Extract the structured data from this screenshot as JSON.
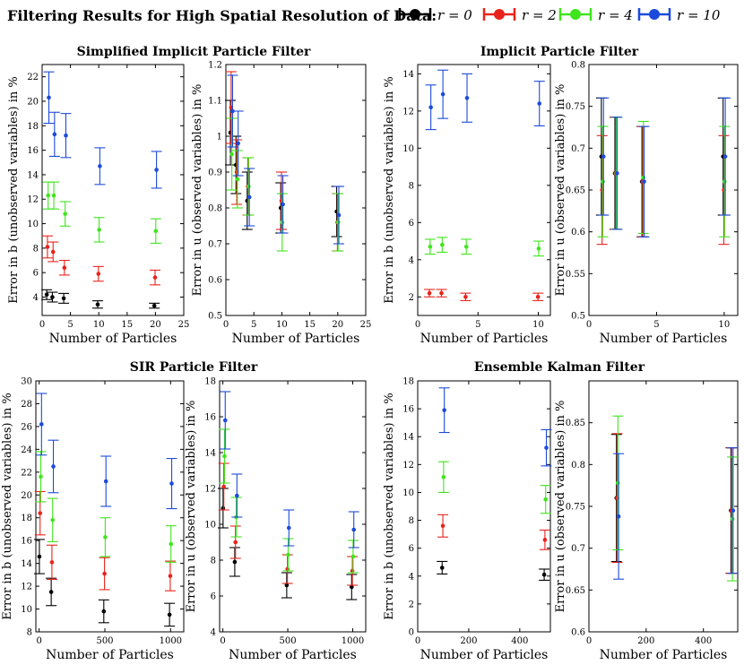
{
  "figure": {
    "main_title": "Filtering Results for High Spatial Resolution of Data:",
    "legend": [
      {
        "label": "r = 0",
        "color": "#000000"
      },
      {
        "label": "r = 2",
        "color": "#e8231b"
      },
      {
        "label": "r = 4",
        "color": "#3fe51c"
      },
      {
        "label": "r = 10",
        "color": "#1c4bdc"
      }
    ],
    "panel_titles": [
      "Simplified Implicit Particle Filter",
      "Implicit Particle Filter",
      "SIR Particle Filter",
      "Ensemble Kalman Filter"
    ]
  },
  "chart_data": [
    {
      "type": "scatter",
      "title": "Simplified Implicit Particle Filter",
      "xlabel": "Number of Particles",
      "ylabel": "Error in b (unobserved variables) in %",
      "xlim": [
        0,
        25
      ],
      "ylim": [
        2.5,
        23
      ],
      "xticks": [
        0,
        5,
        10,
        15,
        20,
        25
      ],
      "yticks": [
        4,
        6,
        8,
        10,
        12,
        14,
        16,
        18,
        20,
        22
      ],
      "series": [
        {
          "name": "r = 0",
          "color": "#000000",
          "points": [
            {
              "x": 1,
              "y": 4.2,
              "err": 0.4
            },
            {
              "x": 2,
              "y": 4.0,
              "err": 0.4
            },
            {
              "x": 4,
              "y": 3.9,
              "err": 0.4
            },
            {
              "x": 10,
              "y": 3.4,
              "err": 0.3
            },
            {
              "x": 20,
              "y": 3.3,
              "err": 0.2
            }
          ]
        },
        {
          "name": "r = 2",
          "color": "#e8231b",
          "points": [
            {
              "x": 1,
              "y": 8.1,
              "err": 0.9
            },
            {
              "x": 2,
              "y": 7.7,
              "err": 0.8
            },
            {
              "x": 4,
              "y": 6.4,
              "err": 0.6
            },
            {
              "x": 10,
              "y": 5.9,
              "err": 0.6
            },
            {
              "x": 20,
              "y": 5.6,
              "err": 0.6
            }
          ]
        },
        {
          "name": "r = 4",
          "color": "#3fe51c",
          "points": [
            {
              "x": 1,
              "y": 12.3,
              "err": 1.1
            },
            {
              "x": 2,
              "y": 12.3,
              "err": 1.1
            },
            {
              "x": 4,
              "y": 10.8,
              "err": 1.0
            },
            {
              "x": 10,
              "y": 9.5,
              "err": 1.0
            },
            {
              "x": 20,
              "y": 9.4,
              "err": 1.0
            }
          ]
        },
        {
          "name": "r = 10",
          "color": "#1c4bdc",
          "points": [
            {
              "x": 1,
              "y": 20.3,
              "err": 2.1
            },
            {
              "x": 2,
              "y": 17.3,
              "err": 1.8
            },
            {
              "x": 4,
              "y": 17.2,
              "err": 1.8
            },
            {
              "x": 10,
              "y": 14.7,
              "err": 1.5
            },
            {
              "x": 20,
              "y": 14.4,
              "err": 1.5
            }
          ]
        }
      ]
    },
    {
      "type": "scatter",
      "title": "",
      "xlabel": "Number of Particles",
      "ylabel": "Error in u (observed variables) in %",
      "xlim": [
        0,
        25
      ],
      "ylim": [
        0.5,
        1.2
      ],
      "xticks": [
        0,
        5,
        10,
        15,
        20,
        25
      ],
      "yticks": [
        0.5,
        0.6,
        0.7,
        0.8,
        0.9,
        1,
        1.1,
        1.2
      ],
      "series": [
        {
          "name": "r = 0",
          "color": "#000000",
          "points": [
            {
              "x": 1,
              "y": 1.01,
              "err": 0.09
            },
            {
              "x": 2,
              "y": 0.92,
              "err": 0.08
            },
            {
              "x": 4,
              "y": 0.82,
              "err": 0.08
            },
            {
              "x": 10,
              "y": 0.8,
              "err": 0.07
            },
            {
              "x": 20,
              "y": 0.79,
              "err": 0.07
            }
          ]
        },
        {
          "name": "r = 2",
          "color": "#e8231b",
          "points": [
            {
              "x": 1,
              "y": 1.08,
              "err": 0.1
            },
            {
              "x": 2,
              "y": 0.9,
              "err": 0.09
            },
            {
              "x": 4,
              "y": 0.86,
              "err": 0.08
            },
            {
              "x": 10,
              "y": 0.82,
              "err": 0.08
            },
            {
              "x": 20,
              "y": 0.76,
              "err": 0.08
            }
          ]
        },
        {
          "name": "r = 4",
          "color": "#3fe51c",
          "points": [
            {
              "x": 1,
              "y": 0.95,
              "err": 0.1
            },
            {
              "x": 2,
              "y": 0.88,
              "err": 0.08
            },
            {
              "x": 4,
              "y": 0.86,
              "err": 0.08
            },
            {
              "x": 10,
              "y": 0.76,
              "err": 0.08
            },
            {
              "x": 20,
              "y": 0.76,
              "err": 0.08
            }
          ]
        },
        {
          "name": "r = 10",
          "color": "#1c4bdc",
          "points": [
            {
              "x": 1,
              "y": 1.07,
              "err": 0.1
            },
            {
              "x": 2,
              "y": 0.98,
              "err": 0.09
            },
            {
              "x": 4,
              "y": 0.83,
              "err": 0.08
            },
            {
              "x": 10,
              "y": 0.81,
              "err": 0.08
            },
            {
              "x": 20,
              "y": 0.78,
              "err": 0.08
            }
          ]
        }
      ]
    },
    {
      "type": "scatter",
      "title": "Implicit Particle Filter",
      "xlabel": "Number of Particles",
      "ylabel": "Error in b (unobserved variables) in %",
      "xlim": [
        0,
        11
      ],
      "ylim": [
        1,
        14.5
      ],
      "xticks": [
        0,
        5,
        10
      ],
      "yticks": [
        2,
        4,
        6,
        8,
        10,
        12,
        14
      ],
      "series": [
        {
          "name": "r = 0",
          "color": "#000000",
          "points": []
        },
        {
          "name": "r = 2",
          "color": "#e8231b",
          "points": [
            {
              "x": 1,
              "y": 2.2,
              "err": 0.2
            },
            {
              "x": 2,
              "y": 2.2,
              "err": 0.2
            },
            {
              "x": 4,
              "y": 2.0,
              "err": 0.2
            },
            {
              "x": 10,
              "y": 2.0,
              "err": 0.2
            }
          ]
        },
        {
          "name": "r = 4",
          "color": "#3fe51c",
          "points": [
            {
              "x": 1,
              "y": 4.7,
              "err": 0.4
            },
            {
              "x": 2,
              "y": 4.8,
              "err": 0.4
            },
            {
              "x": 4,
              "y": 4.7,
              "err": 0.4
            },
            {
              "x": 10,
              "y": 4.6,
              "err": 0.4
            }
          ]
        },
        {
          "name": "r = 10",
          "color": "#1c4bdc",
          "points": [
            {
              "x": 1,
              "y": 12.2,
              "err": 1.2
            },
            {
              "x": 2,
              "y": 12.9,
              "err": 1.3
            },
            {
              "x": 4,
              "y": 12.7,
              "err": 1.3
            },
            {
              "x": 10,
              "y": 12.4,
              "err": 1.2
            }
          ]
        }
      ]
    },
    {
      "type": "scatter",
      "title": "",
      "xlabel": "Number of Particles",
      "ylabel": "Error in u (observed variables) in %",
      "xlim": [
        0,
        11
      ],
      "ylim": [
        0.5,
        0.8
      ],
      "xticks": [
        0,
        5,
        10
      ],
      "yticks": [
        0.5,
        0.55,
        0.6,
        0.65,
        0.7,
        0.75,
        0.8
      ],
      "series": [
        {
          "name": "r = 0",
          "color": "#000000",
          "points": [
            {
              "x": 1,
              "y": 0.69,
              "err": 0.07
            },
            {
              "x": 2,
              "y": 0.67,
              "err": 0.067
            },
            {
              "x": 4,
              "y": 0.66,
              "err": 0.066
            },
            {
              "x": 10,
              "y": 0.69,
              "err": 0.07
            }
          ]
        },
        {
          "name": "r = 2",
          "color": "#e8231b",
          "points": [
            {
              "x": 1,
              "y": 0.65,
              "err": 0.065
            },
            {
              "x": 2,
              "y": 0.67,
              "err": 0.067
            },
            {
              "x": 4,
              "y": 0.66,
              "err": 0.066
            },
            {
              "x": 10,
              "y": 0.65,
              "err": 0.065
            }
          ]
        },
        {
          "name": "r = 4",
          "color": "#3fe51c",
          "points": [
            {
              "x": 1,
              "y": 0.66,
              "err": 0.066
            },
            {
              "x": 2,
              "y": 0.67,
              "err": 0.067
            },
            {
              "x": 4,
              "y": 0.665,
              "err": 0.067
            },
            {
              "x": 10,
              "y": 0.66,
              "err": 0.066
            }
          ]
        },
        {
          "name": "r = 10",
          "color": "#1c4bdc",
          "points": [
            {
              "x": 1,
              "y": 0.69,
              "err": 0.07
            },
            {
              "x": 2,
              "y": 0.67,
              "err": 0.067
            },
            {
              "x": 4,
              "y": 0.66,
              "err": 0.066
            },
            {
              "x": 10,
              "y": 0.69,
              "err": 0.07
            }
          ]
        }
      ]
    },
    {
      "type": "scatter",
      "title": "SIR Particle Filter",
      "xlabel": "Number of Particles",
      "ylabel": "Error in b (unobserved variables) in %",
      "xlim": [
        -25,
        1100
      ],
      "ylim": [
        8,
        30
      ],
      "xticks": [
        0,
        500,
        1000
      ],
      "yticks": [
        8,
        10,
        12,
        14,
        16,
        18,
        20,
        22,
        24,
        26,
        28,
        30
      ],
      "series": [
        {
          "name": "r = 0",
          "color": "#000000",
          "points": [
            {
              "x": 10,
              "y": 14.6,
              "err": 1.5
            },
            {
              "x": 100,
              "y": 11.5,
              "err": 1.2
            },
            {
              "x": 500,
              "y": 9.8,
              "err": 1.0
            },
            {
              "x": 1000,
              "y": 9.5,
              "err": 1.0
            }
          ]
        },
        {
          "name": "r = 2",
          "color": "#e8231b",
          "points": [
            {
              "x": 10,
              "y": 18.4,
              "err": 1.9
            },
            {
              "x": 100,
              "y": 14.1,
              "err": 1.5
            },
            {
              "x": 500,
              "y": 13.1,
              "err": 1.4
            },
            {
              "x": 1000,
              "y": 12.9,
              "err": 1.3
            }
          ]
        },
        {
          "name": "r = 4",
          "color": "#3fe51c",
          "points": [
            {
              "x": 10,
              "y": 21.6,
              "err": 2.2
            },
            {
              "x": 100,
              "y": 17.8,
              "err": 1.9
            },
            {
              "x": 500,
              "y": 16.3,
              "err": 1.7
            },
            {
              "x": 1000,
              "y": 15.7,
              "err": 1.6
            }
          ]
        },
        {
          "name": "r = 10",
          "color": "#1c4bdc",
          "points": [
            {
              "x": 10,
              "y": 26.2,
              "err": 2.7
            },
            {
              "x": 100,
              "y": 22.5,
              "err": 2.3
            },
            {
              "x": 500,
              "y": 21.2,
              "err": 2.2
            },
            {
              "x": 1000,
              "y": 21.0,
              "err": 2.2
            }
          ]
        }
      ]
    },
    {
      "type": "scatter",
      "title": "",
      "xlabel": "Number of Particles",
      "ylabel": "Error in u (observed variables) in %",
      "xlim": [
        -25,
        1100
      ],
      "ylim": [
        4,
        18
      ],
      "xticks": [
        0,
        500,
        1000
      ],
      "yticks": [
        4,
        6,
        8,
        10,
        12,
        14,
        16,
        18
      ],
      "series": [
        {
          "name": "r = 0",
          "color": "#000000",
          "points": [
            {
              "x": 10,
              "y": 10.9,
              "err": 1.1
            },
            {
              "x": 100,
              "y": 7.9,
              "err": 0.8
            },
            {
              "x": 500,
              "y": 6.6,
              "err": 0.7
            },
            {
              "x": 1000,
              "y": 6.5,
              "err": 0.7
            }
          ]
        },
        {
          "name": "r = 2",
          "color": "#e8231b",
          "points": [
            {
              "x": 10,
              "y": 12.1,
              "err": 1.3
            },
            {
              "x": 100,
              "y": 9.0,
              "err": 0.9
            },
            {
              "x": 500,
              "y": 7.5,
              "err": 0.8
            },
            {
              "x": 1000,
              "y": 7.4,
              "err": 0.8
            }
          ]
        },
        {
          "name": "r = 4",
          "color": "#3fe51c",
          "points": [
            {
              "x": 10,
              "y": 13.8,
              "err": 1.5
            },
            {
              "x": 100,
              "y": 10.4,
              "err": 1.1
            },
            {
              "x": 500,
              "y": 8.3,
              "err": 0.9
            },
            {
              "x": 1000,
              "y": 8.2,
              "err": 0.9
            }
          ]
        },
        {
          "name": "r = 10",
          "color": "#1c4bdc",
          "points": [
            {
              "x": 10,
              "y": 15.8,
              "err": 1.6
            },
            {
              "x": 100,
              "y": 11.6,
              "err": 1.2
            },
            {
              "x": 500,
              "y": 9.8,
              "err": 1.0
            },
            {
              "x": 1000,
              "y": 9.7,
              "err": 1.0
            }
          ]
        }
      ]
    },
    {
      "type": "scatter",
      "title": "Ensemble Kalman Filter",
      "xlabel": "Number of Particles",
      "ylabel": "Error in b (unobserved variables) in %",
      "xlim": [
        0,
        520
      ],
      "ylim": [
        0,
        18
      ],
      "xticks": [
        0,
        200,
        400
      ],
      "yticks": [
        0,
        2,
        4,
        6,
        8,
        10,
        12,
        14,
        16,
        18
      ],
      "series": [
        {
          "name": "r = 0",
          "color": "#000000",
          "points": [
            {
              "x": 100,
              "y": 4.6,
              "err": 0.45
            },
            {
              "x": 500,
              "y": 4.1,
              "err": 0.4
            }
          ]
        },
        {
          "name": "r = 2",
          "color": "#e8231b",
          "points": [
            {
              "x": 100,
              "y": 7.6,
              "err": 0.8
            },
            {
              "x": 500,
              "y": 6.6,
              "err": 0.7
            }
          ]
        },
        {
          "name": "r = 4",
          "color": "#3fe51c",
          "points": [
            {
              "x": 100,
              "y": 11.1,
              "err": 1.1
            },
            {
              "x": 500,
              "y": 9.5,
              "err": 1.0
            }
          ]
        },
        {
          "name": "r = 10",
          "color": "#1c4bdc",
          "points": [
            {
              "x": 100,
              "y": 15.9,
              "err": 1.6
            },
            {
              "x": 500,
              "y": 13.2,
              "err": 1.3
            }
          ]
        }
      ]
    },
    {
      "type": "scatter",
      "title": "",
      "xlabel": "Number of Particles",
      "ylabel": "Error in u (observed variables) in %",
      "xlim": [
        0,
        520
      ],
      "ylim": [
        0.6,
        0.9
      ],
      "xticks": [
        0,
        200,
        400
      ],
      "yticks": [
        0.6,
        0.65,
        0.7,
        0.75,
        0.8,
        0.85
      ],
      "series": [
        {
          "name": "r = 0",
          "color": "#000000",
          "points": [
            {
              "x": 100,
              "y": 0.76,
              "err": 0.076
            },
            {
              "x": 500,
              "y": 0.745,
              "err": 0.075
            }
          ]
        },
        {
          "name": "r = 2",
          "color": "#e8231b",
          "points": [
            {
              "x": 100,
              "y": 0.76,
              "err": 0.077
            },
            {
              "x": 500,
              "y": 0.745,
              "err": 0.075
            }
          ]
        },
        {
          "name": "r = 4",
          "color": "#3fe51c",
          "points": [
            {
              "x": 100,
              "y": 0.778,
              "err": 0.08
            },
            {
              "x": 500,
              "y": 0.735,
              "err": 0.074
            }
          ]
        },
        {
          "name": "r = 10",
          "color": "#1c4bdc",
          "points": [
            {
              "x": 100,
              "y": 0.738,
              "err": 0.075
            },
            {
              "x": 500,
              "y": 0.745,
              "err": 0.075
            }
          ]
        }
      ]
    }
  ]
}
